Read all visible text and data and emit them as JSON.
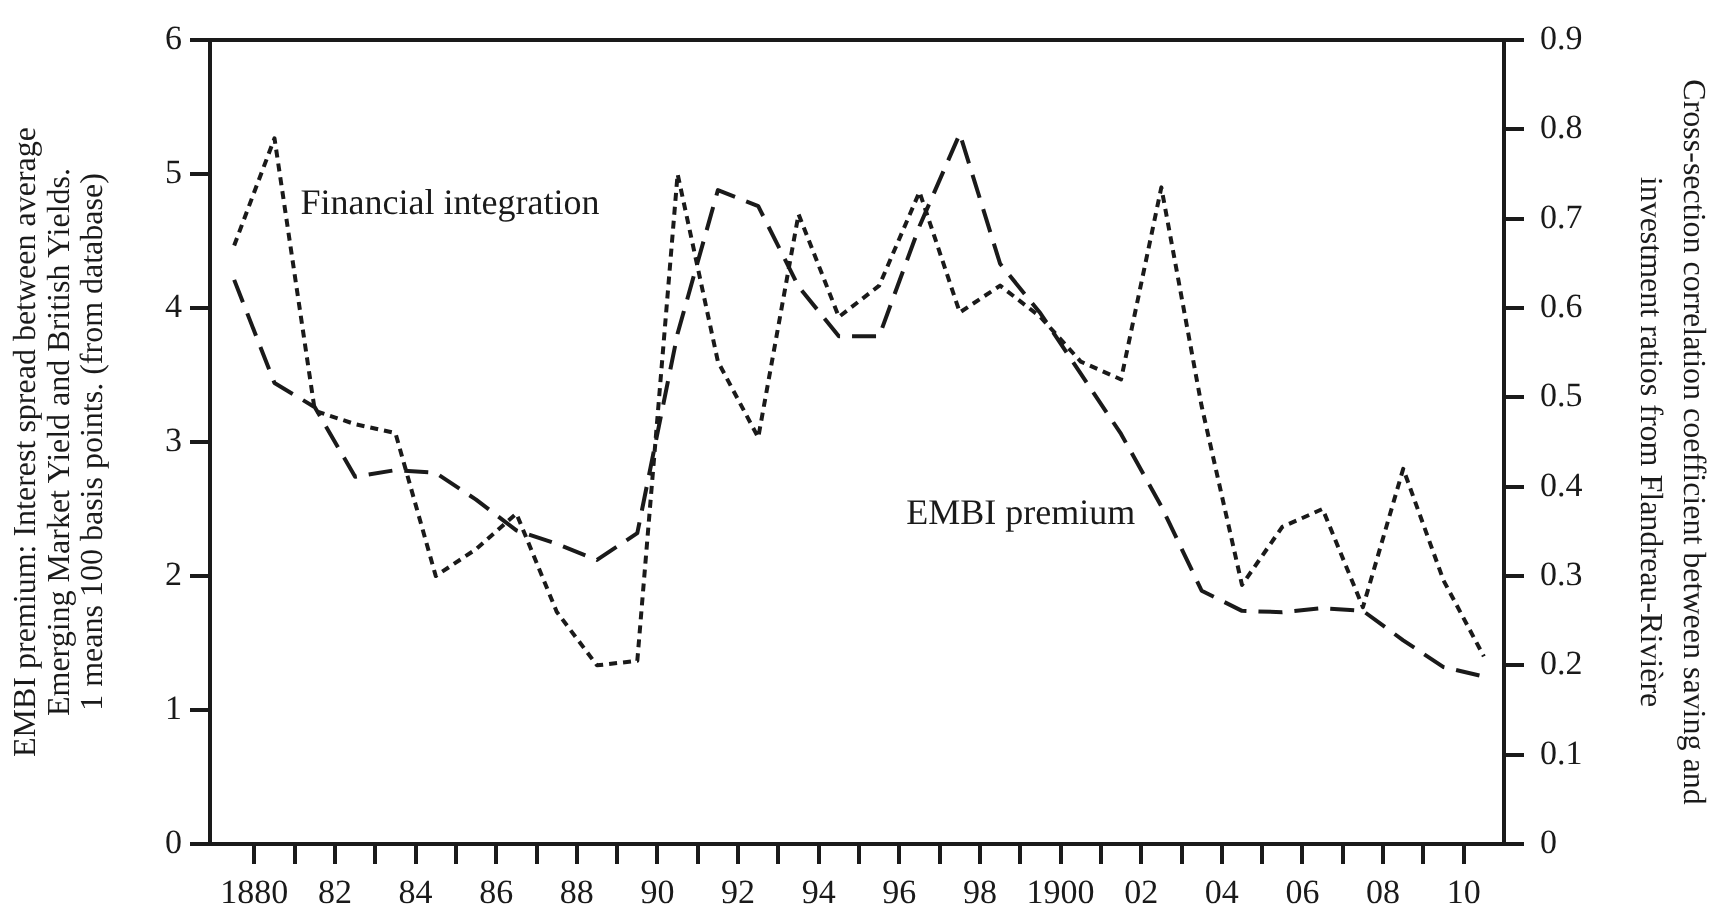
{
  "chart_data": {
    "type": "line",
    "ylabel": "EMBI premium: Interest spread between average\nEmerging Market Yield and British Yields.\n1 means 100 basis points. (from database)",
    "y2label": "Cross-section correlation coefficient between saving and\ninvestment ratios from Flandreau-Rivière",
    "x": [
      1879.5,
      1880.5,
      1881.5,
      1882.5,
      1883.5,
      1884.5,
      1885.5,
      1886.5,
      1887.5,
      1888.5,
      1889.5,
      1890.5,
      1891.5,
      1892.5,
      1893.5,
      1894.5,
      1895.5,
      1896.5,
      1897.5,
      1898.5,
      1899.5,
      1900.5,
      1901.5,
      1902.5,
      1903.5,
      1904.5,
      1905.5,
      1906.5,
      1907.5,
      1908.5,
      1909.5,
      1910.5
    ],
    "xlim": [
      1878.9,
      1911
    ],
    "xticks": [
      {
        "value": 1880,
        "label": "1880"
      },
      {
        "value": 1881,
        "label": null
      },
      {
        "value": 1882,
        "label": "82"
      },
      {
        "value": 1883,
        "label": null
      },
      {
        "value": 1884,
        "label": "84"
      },
      {
        "value": 1885,
        "label": null
      },
      {
        "value": 1886,
        "label": "86"
      },
      {
        "value": 1887,
        "label": null
      },
      {
        "value": 1888,
        "label": "88"
      },
      {
        "value": 1889,
        "label": null
      },
      {
        "value": 1890,
        "label": "90"
      },
      {
        "value": 1891,
        "label": null
      },
      {
        "value": 1892,
        "label": "92"
      },
      {
        "value": 1893,
        "label": null
      },
      {
        "value": 1894,
        "label": "94"
      },
      {
        "value": 1895,
        "label": null
      },
      {
        "value": 1896,
        "label": "96"
      },
      {
        "value": 1897,
        "label": null
      },
      {
        "value": 1898,
        "label": "98"
      },
      {
        "value": 1899,
        "label": null
      },
      {
        "value": 1900,
        "label": "1900"
      },
      {
        "value": 1901,
        "label": null
      },
      {
        "value": 1902,
        "label": "02"
      },
      {
        "value": 1903,
        "label": null
      },
      {
        "value": 1904,
        "label": "04"
      },
      {
        "value": 1905,
        "label": null
      },
      {
        "value": 1906,
        "label": "06"
      },
      {
        "value": 1907,
        "label": null
      },
      {
        "value": 1908,
        "label": "08"
      },
      {
        "value": 1909,
        "label": null
      },
      {
        "value": 1910,
        "label": "10"
      }
    ],
    "ylim": [
      0,
      6
    ],
    "yticks": [
      0,
      1,
      2,
      3,
      4,
      5,
      6
    ],
    "y2lim": [
      0,
      0.9
    ],
    "y2ticks": [
      0,
      0.1,
      0.2,
      0.3,
      0.4,
      0.5,
      0.6,
      0.7,
      0.8,
      0.9
    ],
    "series": [
      {
        "name": "Financial integration",
        "color": "#1a1a1a",
        "axis": "y2",
        "line_style": "dotted",
        "values": [
          0.67,
          0.79,
          0.485,
          0.47,
          0.46,
          0.3,
          0.33,
          0.37,
          0.26,
          0.2,
          0.205,
          0.75,
          0.54,
          0.455,
          0.705,
          0.59,
          0.625,
          0.73,
          0.595,
          0.625,
          0.59,
          0.54,
          0.52,
          0.735,
          0.49,
          0.29,
          0.355,
          0.375,
          0.265,
          0.42,
          0.295,
          0.21
        ]
      },
      {
        "name": "EMBI premium",
        "color": "#1a1a1a",
        "line_style": "dashed",
        "values": [
          4.21,
          3.44,
          3.26,
          2.74,
          2.79,
          2.77,
          2.57,
          2.34,
          2.24,
          2.12,
          2.32,
          3.81,
          4.88,
          4.76,
          4.16,
          3.79,
          3.79,
          4.61,
          5.3,
          4.33,
          3.96,
          3.51,
          3.06,
          2.52,
          1.89,
          1.74,
          1.73,
          1.76,
          1.74,
          1.52,
          1.32,
          1.25
        ]
      }
    ]
  }
}
